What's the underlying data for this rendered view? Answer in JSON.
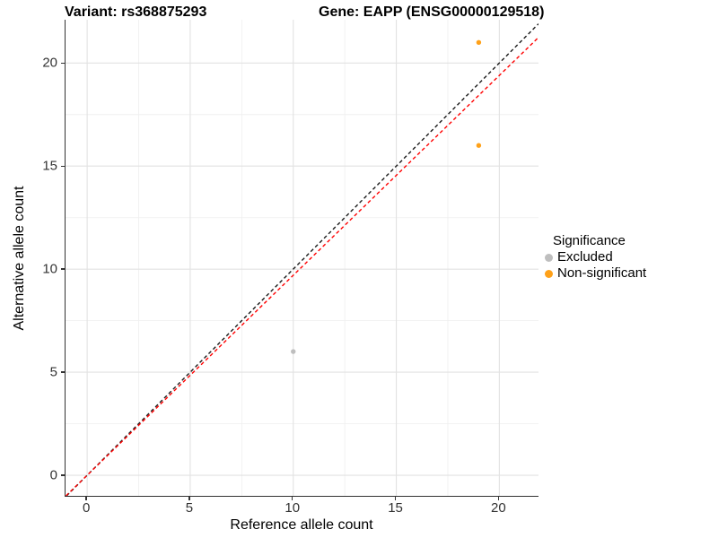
{
  "title": {
    "variant": "Variant: rs368875293",
    "gene": "Gene: EAPP (ENSG00000129518)"
  },
  "chart_data": {
    "type": "scatter",
    "title": "Variant: rs368875293   Gene: EAPP (ENSG00000129518)",
    "xlabel": "Reference allele count",
    "ylabel": "Alternative allele count",
    "xlim": [
      -1.05,
      21.9
    ],
    "ylim": [
      -1.0,
      22.1
    ],
    "x_ticks": [
      0,
      5,
      10,
      15,
      20
    ],
    "y_ticks": [
      0,
      5,
      10,
      15,
      20
    ],
    "x_minor_ticks": [
      2.5,
      7.5,
      12.5,
      17.5
    ],
    "y_minor_ticks": [
      2.5,
      7.5,
      12.5,
      17.5
    ],
    "grid": true,
    "grid_major_color": "#E2E2E2",
    "grid_minor_color": "#F0F0F0",
    "series": [
      {
        "name": "Non-significant",
        "color": "#FFA119",
        "points": [
          {
            "x": 19,
            "y": 21
          },
          {
            "x": 19,
            "y": 16
          }
        ]
      },
      {
        "name": "Excluded",
        "color": "#BEBEBE",
        "points": [
          {
            "x": 10,
            "y": 6
          }
        ]
      }
    ],
    "lines": [
      {
        "name": "identity-line",
        "slope": 1.0,
        "intercept": 0,
        "color": "#1A1A1A",
        "style": "dashed"
      },
      {
        "name": "expected-line",
        "slope": 0.97,
        "intercept": 0,
        "color": "#FF0000",
        "style": "dashed"
      }
    ],
    "legend": {
      "title": "Significance",
      "position": "right",
      "entries": [
        {
          "label": "Excluded",
          "color": "#BEBEBE"
        },
        {
          "label": "Non-significant",
          "color": "#FFA119"
        }
      ]
    }
  }
}
